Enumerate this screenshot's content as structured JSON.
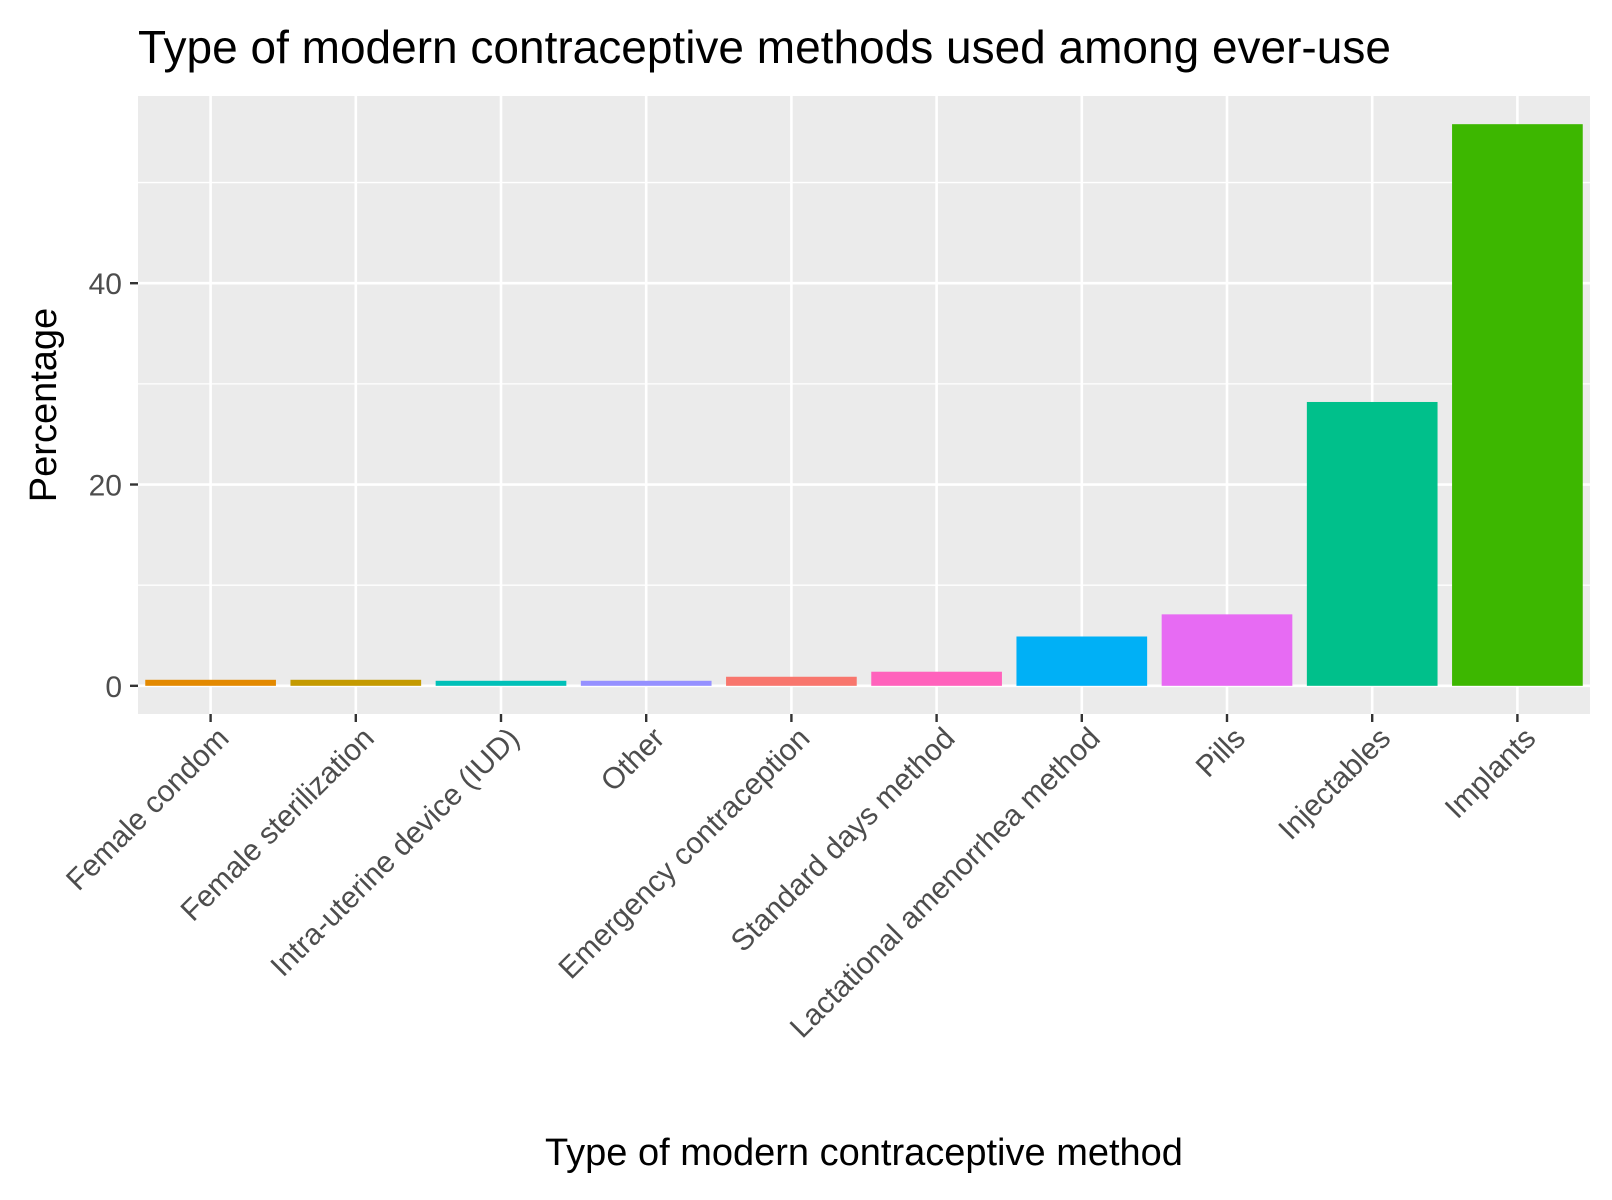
{
  "chart_data": {
    "type": "bar",
    "title": "Type of modern contraceptive methods used among ever-use",
    "xlabel": "Type of modern contraceptive method",
    "ylabel": "Percentage",
    "categories": [
      "Female condom",
      "Female sterilization",
      "Intra-uterine device (IUD)",
      "Other",
      "Emergency contraception",
      "Standard days method",
      "Lactational amenorrhea method",
      "Pills",
      "Injectables",
      "Implants"
    ],
    "values": [
      0.6,
      0.6,
      0.5,
      0.5,
      0.9,
      1.4,
      4.9,
      7.1,
      28.2,
      55.8
    ],
    "colors": [
      "#E38900",
      "#C49A00",
      "#00C0B8",
      "#9590FF",
      "#F8766D",
      "#FF62BC",
      "#00B0F6",
      "#E76BF3",
      "#00C08B",
      "#3DB700"
    ],
    "ylim": [
      -2.8,
      58.6
    ],
    "yticks": [
      0,
      20,
      40
    ],
    "grid": true,
    "legend": "none",
    "panel_background": "#EBEBEB",
    "grid_color": "#FFFFFF"
  }
}
